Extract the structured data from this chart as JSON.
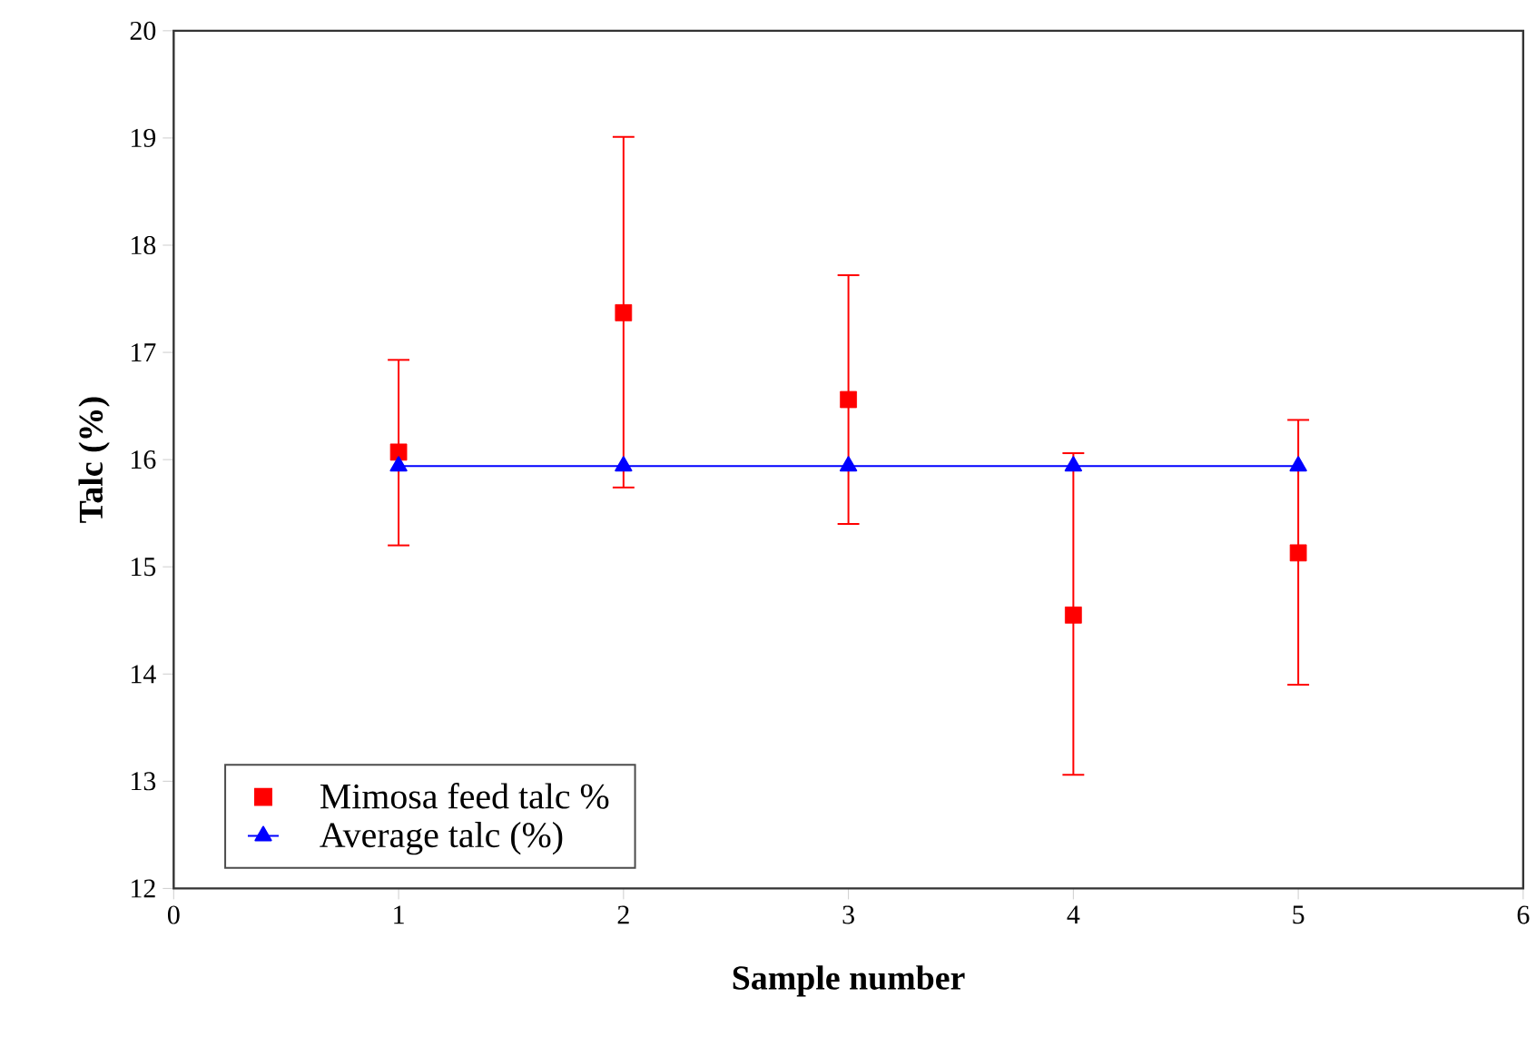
{
  "chart_data": {
    "type": "scatter",
    "xlabel": "Sample number",
    "ylabel": "Talc (%)",
    "x": [
      1,
      2,
      3,
      4,
      5
    ],
    "series": [
      {
        "name": "Mimosa feed talc %",
        "marker": "square",
        "color": "#ff0000",
        "values": [
          16.07,
          17.37,
          16.56,
          14.55,
          15.13
        ],
        "errors": [
          [
            15.2,
            16.93
          ],
          [
            15.74,
            19.01
          ],
          [
            15.4,
            17.72
          ],
          [
            13.06,
            16.06
          ],
          [
            13.9,
            16.37
          ]
        ]
      },
      {
        "name": "Average talc (%)",
        "type": "line",
        "marker": "triangle",
        "line_style": "solid",
        "color": "#0000ff",
        "values": [
          15.94,
          15.94,
          15.94,
          15.94,
          15.94
        ]
      }
    ],
    "xlim": [
      0,
      6
    ],
    "xticks": [
      0,
      1,
      2,
      3,
      4,
      5,
      6
    ],
    "ylim": [
      12,
      20
    ],
    "yticks": [
      12,
      13,
      14,
      15,
      16,
      17,
      18,
      19,
      20
    ],
    "grid": false,
    "legend": "bottom left"
  }
}
